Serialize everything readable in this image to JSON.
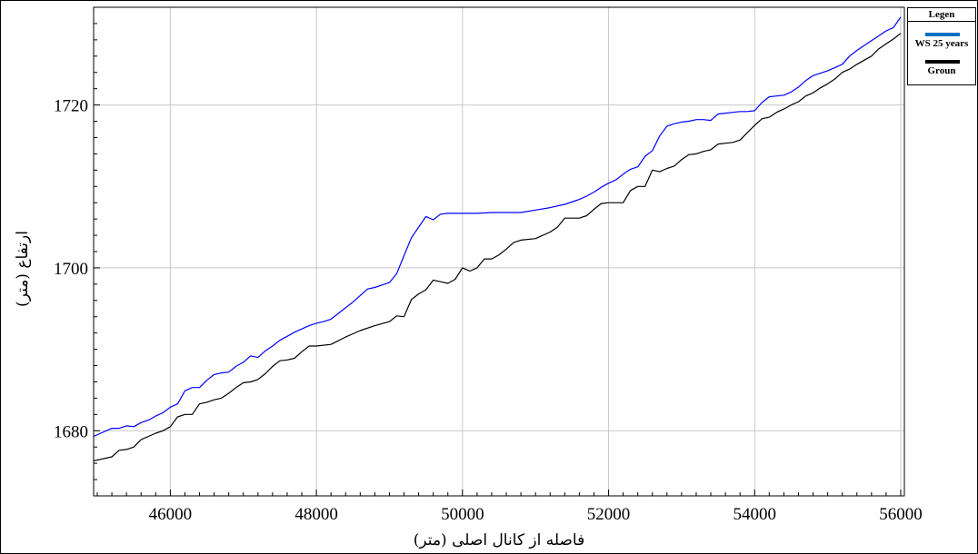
{
  "chart_data": {
    "type": "line",
    "xlabel": "فاصله از کانال اصلی (متر)",
    "ylabel": "ارتفاع (متر)",
    "xlim": [
      44950,
      56050
    ],
    "ylim": [
      1672,
      1732
    ],
    "xticks": [
      46000,
      48000,
      50000,
      52000,
      54000,
      56000
    ],
    "yticks": [
      1680,
      1700,
      1720
    ],
    "grid": true,
    "legend": {
      "title": "Legen",
      "placement": "top-right"
    },
    "series": [
      {
        "name": "WS 25 years",
        "color": "#0000ff",
        "legend_color": "#0070c0",
        "x": [
          44950,
          45200,
          45300,
          45400,
          45500,
          45600,
          45700,
          45800,
          45900,
          46000,
          46100,
          46200,
          46300,
          46400,
          46500,
          46600,
          46700,
          46800,
          46900,
          47000,
          47100,
          47200,
          47300,
          47400,
          47500,
          47600,
          47700,
          47800,
          47900,
          48000,
          48100,
          48200,
          48300,
          48400,
          48500,
          48600,
          48700,
          48800,
          48900,
          49000,
          49100,
          49200,
          49300,
          49400,
          49500,
          49600,
          49700,
          49800,
          49900,
          50000,
          50200,
          50400,
          50600,
          50800,
          51000,
          51200,
          51400,
          51600,
          51700,
          51800,
          51900,
          52000,
          52100,
          52200,
          52300,
          52400,
          52500,
          52600,
          52700,
          52800,
          52900,
          53000,
          53100,
          53200,
          53300,
          53400,
          53500,
          53600,
          53700,
          53800,
          53900,
          54000,
          54100,
          54200,
          54300,
          54400,
          54500,
          54600,
          54700,
          54800,
          54900,
          55000,
          55100,
          55200,
          55300,
          55400,
          55500,
          55600,
          55700,
          55800,
          55900,
          56000
        ],
        "y": [
          1679.3,
          1680.3,
          1680.3,
          1680.6,
          1680.5,
          1681.0,
          1681.3,
          1681.8,
          1682.2,
          1682.9,
          1683.3,
          1684.9,
          1685.3,
          1685.3,
          1686.2,
          1686.9,
          1687.1,
          1687.2,
          1687.9,
          1688.4,
          1689.2,
          1689.0,
          1689.8,
          1690.4,
          1691.1,
          1691.6,
          1692.1,
          1692.5,
          1692.9,
          1693.2,
          1693.4,
          1693.7,
          1694.4,
          1695.1,
          1695.8,
          1696.6,
          1697.4,
          1697.6,
          1697.9,
          1698.2,
          1699.3,
          1701.5,
          1703.7,
          1705.0,
          1706.3,
          1705.9,
          1706.6,
          1706.7,
          1706.7,
          1706.7,
          1706.7,
          1706.8,
          1706.8,
          1706.8,
          1707.1,
          1707.4,
          1707.8,
          1708.4,
          1708.8,
          1709.3,
          1709.9,
          1710.4,
          1710.8,
          1711.5,
          1712.1,
          1712.4,
          1713.7,
          1714.4,
          1716.2,
          1717.4,
          1717.7,
          1717.9,
          1718.0,
          1718.2,
          1718.2,
          1718.1,
          1718.9,
          1719.0,
          1719.1,
          1719.2,
          1719.2,
          1719.3,
          1720.3,
          1721.0,
          1721.1,
          1721.2,
          1721.6,
          1722.2,
          1723.0,
          1723.6,
          1723.9,
          1724.2,
          1724.6,
          1725.0,
          1726.0,
          1726.7,
          1727.3,
          1727.9,
          1728.5,
          1729.1,
          1729.5,
          1730.8
        ]
      },
      {
        "name": "Groun",
        "color": "#000000",
        "legend_color": "#000000",
        "x": [
          44950,
          45200,
          45300,
          45400,
          45500,
          45600,
          45700,
          45800,
          45900,
          46000,
          46100,
          46200,
          46300,
          46400,
          46500,
          46600,
          46700,
          46800,
          46900,
          47000,
          47100,
          47200,
          47300,
          47400,
          47500,
          47600,
          47700,
          47800,
          47900,
          48000,
          48200,
          48400,
          48600,
          48800,
          49000,
          49100,
          49200,
          49300,
          49400,
          49500,
          49600,
          49700,
          49800,
          49900,
          50000,
          50100,
          50200,
          50300,
          50400,
          50500,
          50600,
          50700,
          50800,
          51000,
          51200,
          51300,
          51400,
          51600,
          51700,
          51800,
          51900,
          52000,
          52100,
          52200,
          52300,
          52400,
          52500,
          52600,
          52700,
          52800,
          52900,
          53000,
          53100,
          53200,
          53300,
          53400,
          53500,
          53600,
          53700,
          53800,
          53900,
          54000,
          54100,
          54200,
          54300,
          54400,
          54500,
          54600,
          54700,
          54800,
          54900,
          55000,
          55100,
          55200,
          55300,
          55400,
          55500,
          55600,
          55700,
          55800,
          55900,
          56000
        ],
        "y": [
          1676.3,
          1676.8,
          1677.6,
          1677.7,
          1678.0,
          1678.9,
          1679.3,
          1679.7,
          1680.0,
          1680.5,
          1681.7,
          1682.0,
          1682.0,
          1683.3,
          1683.5,
          1683.8,
          1684.0,
          1684.6,
          1685.3,
          1685.9,
          1686.0,
          1686.3,
          1687.0,
          1687.9,
          1688.6,
          1688.7,
          1688.9,
          1689.7,
          1690.4,
          1690.4,
          1690.6,
          1691.5,
          1692.3,
          1692.9,
          1693.4,
          1694.1,
          1694.0,
          1696.1,
          1696.8,
          1697.3,
          1698.5,
          1698.3,
          1698.1,
          1698.6,
          1700.0,
          1699.6,
          1700.0,
          1701.1,
          1701.1,
          1701.6,
          1702.3,
          1703.1,
          1703.4,
          1703.6,
          1704.4,
          1705.0,
          1706.1,
          1706.1,
          1706.4,
          1707.2,
          1707.9,
          1708.0,
          1708.0,
          1708.0,
          1709.5,
          1710.0,
          1710.0,
          1712.0,
          1711.8,
          1712.2,
          1712.5,
          1713.3,
          1713.9,
          1714.0,
          1714.3,
          1714.5,
          1715.2,
          1715.3,
          1715.4,
          1715.7,
          1716.6,
          1717.5,
          1718.3,
          1718.5,
          1719.1,
          1719.5,
          1720.0,
          1720.4,
          1721.1,
          1721.5,
          1722.1,
          1722.6,
          1723.2,
          1724.0,
          1724.4,
          1725.0,
          1725.5,
          1726.0,
          1726.9,
          1727.5,
          1728.1,
          1728.8
        ]
      }
    ]
  }
}
